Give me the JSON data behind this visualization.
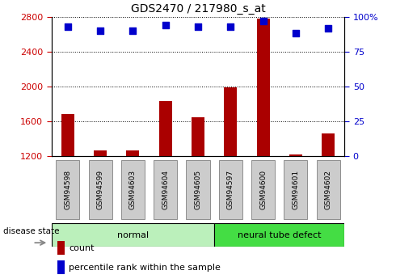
{
  "title": "GDS2470 / 217980_s_at",
  "samples": [
    "GSM94598",
    "GSM94599",
    "GSM94603",
    "GSM94604",
    "GSM94605",
    "GSM94597",
    "GSM94600",
    "GSM94601",
    "GSM94602"
  ],
  "count_values": [
    1680,
    1270,
    1270,
    1830,
    1650,
    1990,
    2780,
    1220,
    1460
  ],
  "percentile_values": [
    93,
    90,
    90,
    94,
    93,
    93,
    97,
    88,
    92
  ],
  "ylim_left": [
    1200,
    2800
  ],
  "ylim_right": [
    0,
    100
  ],
  "yticks_left": [
    1200,
    1600,
    2000,
    2400,
    2800
  ],
  "yticks_right": [
    0,
    25,
    50,
    75,
    100
  ],
  "right_tick_labels": [
    "0",
    "25",
    "50",
    "75",
    "100%"
  ],
  "disease_groups": [
    {
      "label": "normal",
      "start": 0,
      "end": 5,
      "color": "#bbf0bb"
    },
    {
      "label": "neural tube defect",
      "start": 5,
      "end": 9,
      "color": "#44dd44"
    }
  ],
  "bar_color": "#aa0000",
  "dot_color": "#0000cc",
  "tick_color_left": "#cc0000",
  "tick_color_right": "#0000cc",
  "grid_color": "#000000",
  "background_color": "#ffffff",
  "label_bg_color": "#cccccc",
  "disease_state_label": "disease state",
  "legend_count": "count",
  "legend_percentile": "percentile rank within the sample",
  "bar_width": 0.4
}
